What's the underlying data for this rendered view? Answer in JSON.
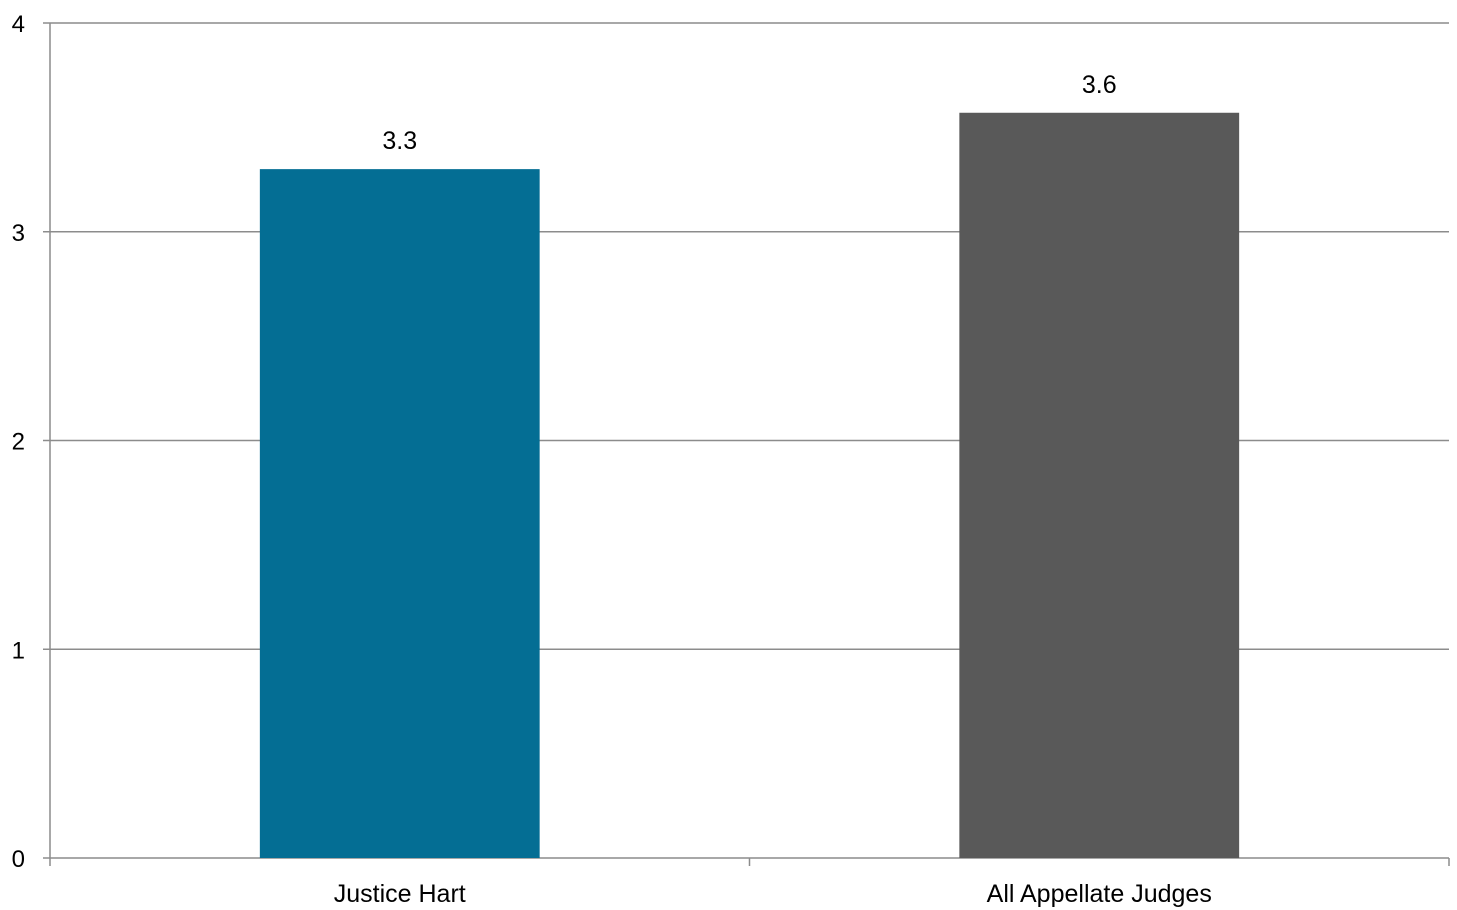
{
  "chart_data": {
    "type": "bar",
    "title": "",
    "xlabel": "",
    "ylabel": "",
    "categories": [
      "Justice Hart",
      "All Appellate Judges"
    ],
    "values": [
      3.3,
      3.57
    ],
    "data_labels": [
      "3.3",
      "3.6"
    ],
    "colors": [
      "#046E94",
      "#595959"
    ],
    "ylim": [
      0,
      4
    ],
    "yticks": [
      "0",
      "1",
      "2",
      "3",
      "4"
    ],
    "grid": true,
    "legend": "none"
  }
}
